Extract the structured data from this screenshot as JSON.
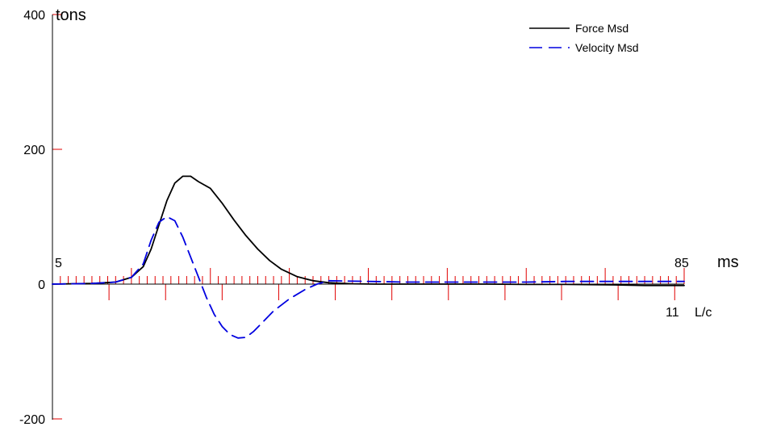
{
  "chart_data": {
    "type": "line",
    "title": "",
    "ylabel": "tons",
    "xlabel": "ms",
    "xlabel_secondary": "L/c",
    "ylim": [
      -200,
      400
    ],
    "xlim": [
      5,
      85
    ],
    "y_ticks": [
      400,
      200,
      0,
      -200
    ],
    "y_tick_labels": [
      "400",
      "200",
      "0",
      "-200"
    ],
    "x_start_label": "5",
    "x_end_label": "85",
    "lc_end_label": "11",
    "lc_ticks_count": 11,
    "ms_minor_tick_spacing": 1,
    "ms_major_tick_spacing": 10,
    "legend": {
      "placement": "top-right",
      "entries": [
        "Force Msd",
        "Velocity Msd"
      ]
    },
    "series": [
      {
        "name": "Force Msd",
        "color": "#000000",
        "style": "solid",
        "x": [
          5,
          10,
          13,
          15,
          16.5,
          17.5,
          18.5,
          19.5,
          20.5,
          21.5,
          22.5,
          23.5,
          25,
          26.5,
          28,
          29.5,
          31,
          32.5,
          34,
          36,
          38,
          40,
          43,
          46,
          50,
          55,
          60,
          65,
          70,
          75,
          80,
          85
        ],
        "y": [
          0,
          1,
          3,
          10,
          26,
          52,
          88,
          124,
          150,
          160,
          160,
          152,
          142,
          120,
          95,
          72,
          52,
          35,
          22,
          11,
          5,
          2,
          0.5,
          0,
          0,
          0,
          0,
          -0.5,
          -0.5,
          -1,
          -2,
          -2
        ]
      },
      {
        "name": "Velocity Msd",
        "color": "#0000e0",
        "style": "dashed",
        "x": [
          5,
          10,
          13,
          15,
          16.5,
          17.5,
          18.5,
          19.5,
          20.5,
          21.5,
          22.5,
          23.5,
          24.5,
          25.5,
          26.5,
          27.5,
          28.5,
          29.5,
          30.5,
          31.5,
          33,
          35,
          37,
          38.5,
          40,
          45,
          50,
          55,
          60,
          65,
          70,
          75,
          80,
          85
        ],
        "y": [
          0,
          1,
          3,
          10,
          30,
          65,
          92,
          100,
          94,
          70,
          40,
          10,
          -20,
          -45,
          -63,
          -75,
          -80,
          -79,
          -70,
          -58,
          -40,
          -22,
          -8,
          0,
          5,
          4,
          3,
          3,
          3,
          3,
          4,
          4,
          4,
          4
        ]
      }
    ]
  }
}
